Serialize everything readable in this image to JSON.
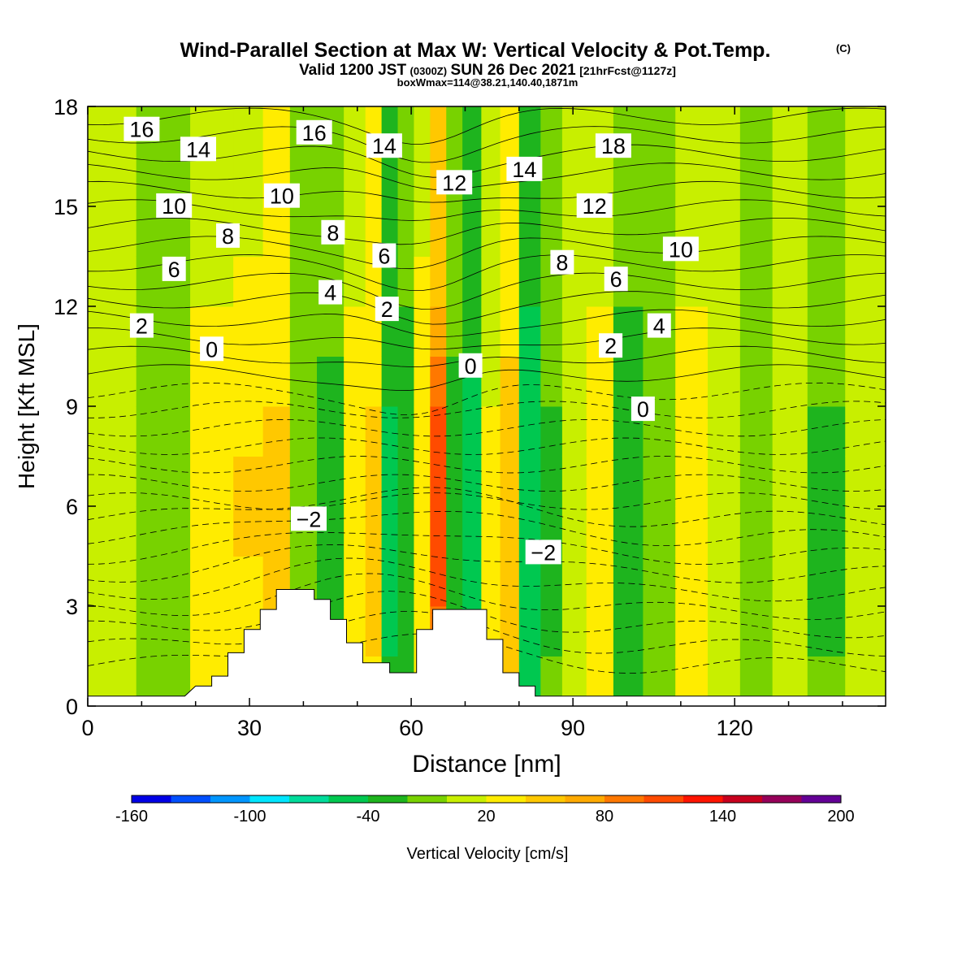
{
  "header": {
    "title": "Wind-Parallel Section at Max W: Vertical Velocity & Pot.Temp.",
    "copyright": "(C)",
    "valid_prefix": "Valid 1200 JST",
    "valid_utc": "(0300Z)",
    "valid_date": "SUN 26 Dec 2021",
    "forecast": "[21hrFcst@1127z]",
    "boxinfo": "boxWmax=114@38.21,140.40,1871m"
  },
  "chart_data": {
    "type": "heatmap",
    "title": "Wind-Parallel Section at Max W: Vertical Velocity & Pot.Temp.",
    "xlabel": "Distance [nm]",
    "ylabel": "Height [Kft MSL]",
    "xlim": [
      0,
      148
    ],
    "ylim": [
      0,
      18
    ],
    "xticks": [
      0,
      30,
      60,
      90,
      120
    ],
    "yticks": [
      0,
      3,
      6,
      9,
      12,
      15,
      18
    ],
    "colorbar": {
      "label": "Vertical Velocity [cm/s]",
      "tick_labels": [
        "-160",
        "-100",
        "-40",
        "20",
        "80",
        "140",
        "200"
      ],
      "tick_values": [
        -160,
        -100,
        -40,
        20,
        80,
        140,
        200
      ],
      "range": [
        -160,
        200
      ],
      "colors": [
        "#0000e6",
        "#0050ff",
        "#0096ff",
        "#00e6ff",
        "#00dc9b",
        "#00c850",
        "#1eb41e",
        "#78d200",
        "#c8ef00",
        "#ffec00",
        "#ffc800",
        "#ffaa00",
        "#ff7800",
        "#ff4b00",
        "#ff1400",
        "#c8001e",
        "#96005a",
        "#640096"
      ]
    },
    "w_columns": [
      {
        "x": 4,
        "w": 3
      },
      {
        "x": 14,
        "w": -1
      },
      {
        "x": 24,
        "w": 30
      },
      {
        "x": 30,
        "w": 42
      },
      {
        "x": 35,
        "w": 52
      },
      {
        "x": 40,
        "w": -20
      },
      {
        "x": 45,
        "w": -28
      },
      {
        "x": 50,
        "w": 32
      },
      {
        "x": 53,
        "w": 48
      },
      {
        "x": 56,
        "w": -52
      },
      {
        "x": 59,
        "w": -35
      },
      {
        "x": 62,
        "w": 40
      },
      {
        "x": 65,
        "w": 114
      },
      {
        "x": 68,
        "w": -28
      },
      {
        "x": 71,
        "w": -55
      },
      {
        "x": 75,
        "w": 25
      },
      {
        "x": 78,
        "w": 55
      },
      {
        "x": 82,
        "w": -60
      },
      {
        "x": 86,
        "w": -25
      },
      {
        "x": 90,
        "w": 0
      },
      {
        "x": 95,
        "w": 30
      },
      {
        "x": 100,
        "w": -30
      },
      {
        "x": 106,
        "w": -5
      },
      {
        "x": 112,
        "w": 30
      },
      {
        "x": 118,
        "w": 0
      },
      {
        "x": 124,
        "w": -18
      },
      {
        "x": 130,
        "w": 5
      },
      {
        "x": 137,
        "w": -25
      },
      {
        "x": 144,
        "w": 0
      }
    ],
    "terrain": [
      [
        0,
        0.3
      ],
      [
        18,
        0.3
      ],
      [
        20,
        0.6
      ],
      [
        23,
        0.6
      ],
      [
        23,
        0.9
      ],
      [
        26,
        0.9
      ],
      [
        26,
        1.6
      ],
      [
        29,
        1.6
      ],
      [
        29,
        2.3
      ],
      [
        32,
        2.3
      ],
      [
        32,
        2.9
      ],
      [
        35,
        2.9
      ],
      [
        35,
        3.5
      ],
      [
        42,
        3.5
      ],
      [
        42,
        3.2
      ],
      [
        45,
        3.2
      ],
      [
        45,
        2.6
      ],
      [
        48,
        2.6
      ],
      [
        48,
        1.9
      ],
      [
        51,
        1.9
      ],
      [
        51,
        1.3
      ],
      [
        56,
        1.3
      ],
      [
        56,
        1.0
      ],
      [
        61,
        1.0
      ],
      [
        61,
        2.3
      ],
      [
        64,
        2.3
      ],
      [
        64,
        2.9
      ],
      [
        74,
        2.9
      ],
      [
        74,
        2.0
      ],
      [
        77,
        2.0
      ],
      [
        77,
        1.0
      ],
      [
        80,
        1.0
      ],
      [
        80,
        0.6
      ],
      [
        83,
        0.6
      ],
      [
        83,
        0.3
      ],
      [
        148,
        0.3
      ]
    ],
    "theta_contours": [
      {
        "value": 16,
        "h": 16.7,
        "label": "16",
        "lx": 10,
        "ly": 17.3
      },
      {
        "value": 14,
        "h": 16.1,
        "label": "14",
        "lx": 20.5,
        "ly": 16.7
      },
      {
        "value": 10,
        "h": 14.8,
        "label": "10",
        "lx": 16,
        "ly": 15.0
      },
      {
        "value": 10,
        "h": 15.0,
        "label": "10",
        "lx": 36,
        "ly": 15.3
      },
      {
        "value": 8,
        "h": 14.1,
        "label": "8",
        "lx": 26,
        "ly": 14.1
      },
      {
        "value": 6,
        "h": 13.0,
        "label": "6",
        "lx": 16,
        "ly": 13.1
      },
      {
        "value": 2,
        "h": 11.3,
        "label": "2",
        "lx": 10,
        "ly": 11.4
      },
      {
        "value": 0,
        "h": 10.8,
        "label": "0",
        "lx": 23,
        "ly": 10.7
      },
      {
        "value": 16,
        "h": 17.2,
        "label": "16",
        "lx": 42,
        "ly": 17.2
      },
      {
        "value": 14,
        "h": 16.8,
        "label": "14",
        "lx": 55,
        "ly": 16.8
      },
      {
        "value": 12,
        "h": 15.8,
        "label": "12",
        "lx": 68,
        "ly": 15.7
      },
      {
        "value": 14,
        "h": 16.1,
        "label": "14",
        "lx": 81,
        "ly": 16.1
      },
      {
        "value": 18,
        "h": 16.8,
        "label": "18",
        "lx": 97.5,
        "ly": 16.8
      },
      {
        "value": 12,
        "h": 15.0,
        "label": "12",
        "lx": 94,
        "ly": 15.0
      },
      {
        "value": 8,
        "h": 14.2,
        "label": "8",
        "lx": 45.5,
        "ly": 14.2
      },
      {
        "value": 6,
        "h": 13.6,
        "label": "6",
        "lx": 55,
        "ly": 13.5
      },
      {
        "value": 8,
        "h": 13.3,
        "label": "8",
        "lx": 88,
        "ly": 13.3
      },
      {
        "value": 10,
        "h": 13.7,
        "label": "10",
        "lx": 110,
        "ly": 13.7
      },
      {
        "value": 6,
        "h": 12.8,
        "label": "6",
        "lx": 98,
        "ly": 12.8
      },
      {
        "value": 4,
        "h": 12.4,
        "label": "4",
        "lx": 45,
        "ly": 12.4
      },
      {
        "value": 2,
        "h": 11.9,
        "label": "2",
        "lx": 55.5,
        "ly": 11.9
      },
      {
        "value": 4,
        "h": 11.4,
        "label": "4",
        "lx": 106,
        "ly": 11.4
      },
      {
        "value": 2,
        "h": 10.9,
        "label": "2",
        "lx": 97,
        "ly": 10.8
      },
      {
        "value": 0,
        "h": 10.2,
        "label": "0",
        "lx": 71,
        "ly": 10.2
      },
      {
        "value": 0,
        "h": 8.9,
        "label": "0",
        "lx": 103,
        "ly": 8.9
      },
      {
        "value": -2,
        "h": 5.3,
        "label": "−2",
        "lx": 41,
        "ly": 5.6
      },
      {
        "value": -2,
        "h": 4.6,
        "label": "−2",
        "lx": 84.5,
        "ly": 4.6
      }
    ]
  }
}
